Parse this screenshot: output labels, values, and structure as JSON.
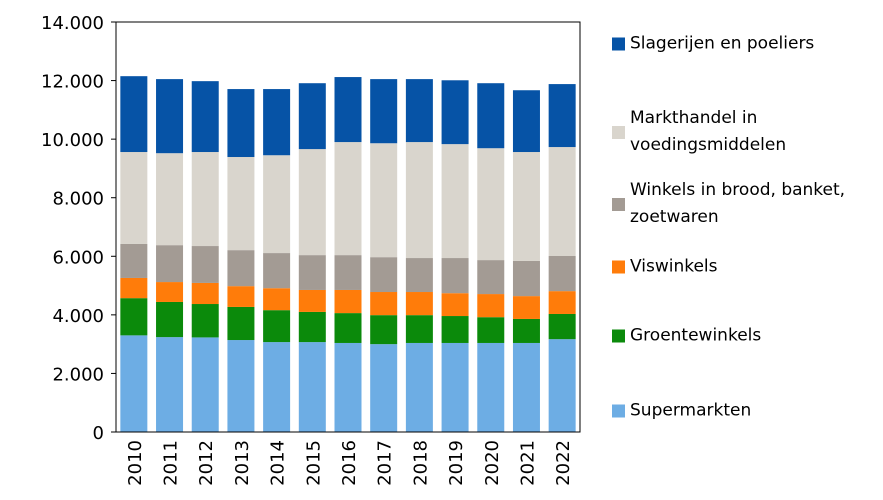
{
  "chart_data": {
    "type": "stacked_bar",
    "categories": [
      "2010",
      "2011",
      "2012",
      "2013",
      "2014",
      "2015",
      "2016",
      "2017",
      "2018",
      "2019",
      "2020",
      "2021",
      "2022"
    ],
    "series": [
      {
        "name": "Supermarkten",
        "color": "#6dade4",
        "values": [
          3300,
          3240,
          3230,
          3140,
          3070,
          3070,
          3040,
          3000,
          3040,
          3040,
          3040,
          3040,
          3170
        ]
      },
      {
        "name": "Groentewinkels",
        "color": "#0b8a0b",
        "values": [
          1270,
          1200,
          1140,
          1130,
          1090,
          1030,
          1020,
          990,
          950,
          920,
          880,
          820,
          860
        ]
      },
      {
        "name": "Viswinkels",
        "color": "#ff7c0a",
        "values": [
          690,
          680,
          720,
          710,
          750,
          750,
          790,
          790,
          790,
          780,
          790,
          780,
          780
        ]
      },
      {
        "name": "Winkels in brood, banket, zoetwaren",
        "color": "#a39b94",
        "values": [
          1160,
          1260,
          1260,
          1230,
          1200,
          1190,
          1190,
          1190,
          1160,
          1200,
          1160,
          1200,
          1200
        ]
      },
      {
        "name": "Markthandel in voedingsmiddelen",
        "color": "#d9d5cd",
        "values": [
          3140,
          3140,
          3210,
          3180,
          3340,
          3620,
          3860,
          3890,
          3960,
          3890,
          3820,
          3720,
          3720
        ]
      },
      {
        "name": "Slagerijen en poeliers",
        "color": "#0653a6",
        "values": [
          2590,
          2530,
          2420,
          2320,
          2260,
          2250,
          2220,
          2190,
          2150,
          2180,
          2220,
          2110,
          2150
        ]
      }
    ],
    "ylim": [
      0,
      14000
    ],
    "yticks": [
      0,
      {
        "value": 2000,
        "label": "2.000"
      },
      {
        "value": 4000,
        "label": "4.000"
      },
      {
        "value": 6000,
        "label": "6.000"
      },
      {
        "value": 8000,
        "label": "8.000"
      },
      {
        "value": 10000,
        "label": "10.000"
      },
      {
        "value": 12000,
        "label": "12.000"
      },
      {
        "value": 14000,
        "label": "14.000"
      }
    ],
    "legend": "right"
  }
}
